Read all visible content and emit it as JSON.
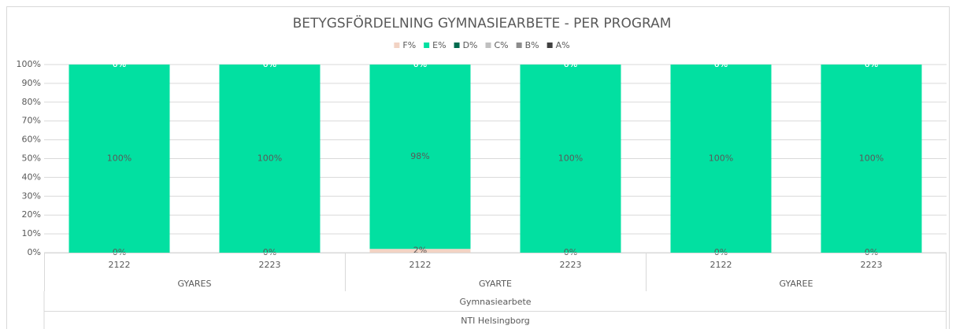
{
  "chart_data": {
    "type": "stacked_bar_100",
    "title": "BETYGSFÖRDELNING GYMNASIEARBETE - PER PROGRAM",
    "categories": [
      "2122",
      "2223",
      "2122",
      "2223",
      "2122",
      "2223"
    ],
    "groups": [
      "GYARES",
      "GYARTE",
      "GYAREE"
    ],
    "supergroup": "Gymnasiearbete",
    "topgroup": "NTI Helsingborg",
    "series": [
      {
        "name": "F%",
        "color": "#f2d3c4",
        "values": [
          0,
          0,
          2,
          0,
          0,
          0
        ],
        "value_labels": [
          "0%",
          "0%",
          "2%",
          "0%",
          "0%",
          "0%"
        ]
      },
      {
        "name": "E%",
        "color": "#02e0a1",
        "values": [
          100,
          100,
          98,
          100,
          100,
          100
        ],
        "value_labels": [
          "100%",
          "100%",
          "98%",
          "100%",
          "100%",
          "100%"
        ]
      },
      {
        "name": "D%",
        "color": "#006b4f",
        "values": [
          0,
          0,
          0,
          0,
          0,
          0
        ],
        "value_labels": [
          "0%",
          "0%",
          "0%",
          "0%",
          "0%",
          "0%"
        ]
      },
      {
        "name": "C%",
        "color": "#c0c0c0",
        "values": [
          0,
          0,
          0,
          0,
          0,
          0
        ],
        "value_labels": [
          "0%",
          "0%",
          "0%",
          "0%",
          "0%",
          "0%"
        ]
      },
      {
        "name": "B%",
        "color": "#8c8c8c",
        "values": [
          0,
          0,
          0,
          0,
          0,
          0
        ],
        "value_labels": [
          "0%",
          "0%",
          "0%",
          "0%",
          "0%",
          "0%"
        ]
      },
      {
        "name": "A%",
        "color": "#404040",
        "values": [
          0,
          0,
          0,
          0,
          0,
          0
        ],
        "value_labels": [
          "0%",
          "0%",
          "0%",
          "0%",
          "0%",
          "0%"
        ]
      }
    ],
    "ylim": [
      0,
      100
    ],
    "yticks": [
      {
        "value": 0,
        "label": "0%"
      },
      {
        "value": 10,
        "label": "10%"
      },
      {
        "value": 20,
        "label": "20%"
      },
      {
        "value": 30,
        "label": "30%"
      },
      {
        "value": 40,
        "label": "40%"
      },
      {
        "value": 50,
        "label": "50%"
      },
      {
        "value": 60,
        "label": "60%"
      },
      {
        "value": 70,
        "label": "70%"
      },
      {
        "value": 80,
        "label": "80%"
      },
      {
        "value": 90,
        "label": "90%"
      },
      {
        "value": 100,
        "label": "100%"
      }
    ],
    "grid": true,
    "legend": "top"
  }
}
